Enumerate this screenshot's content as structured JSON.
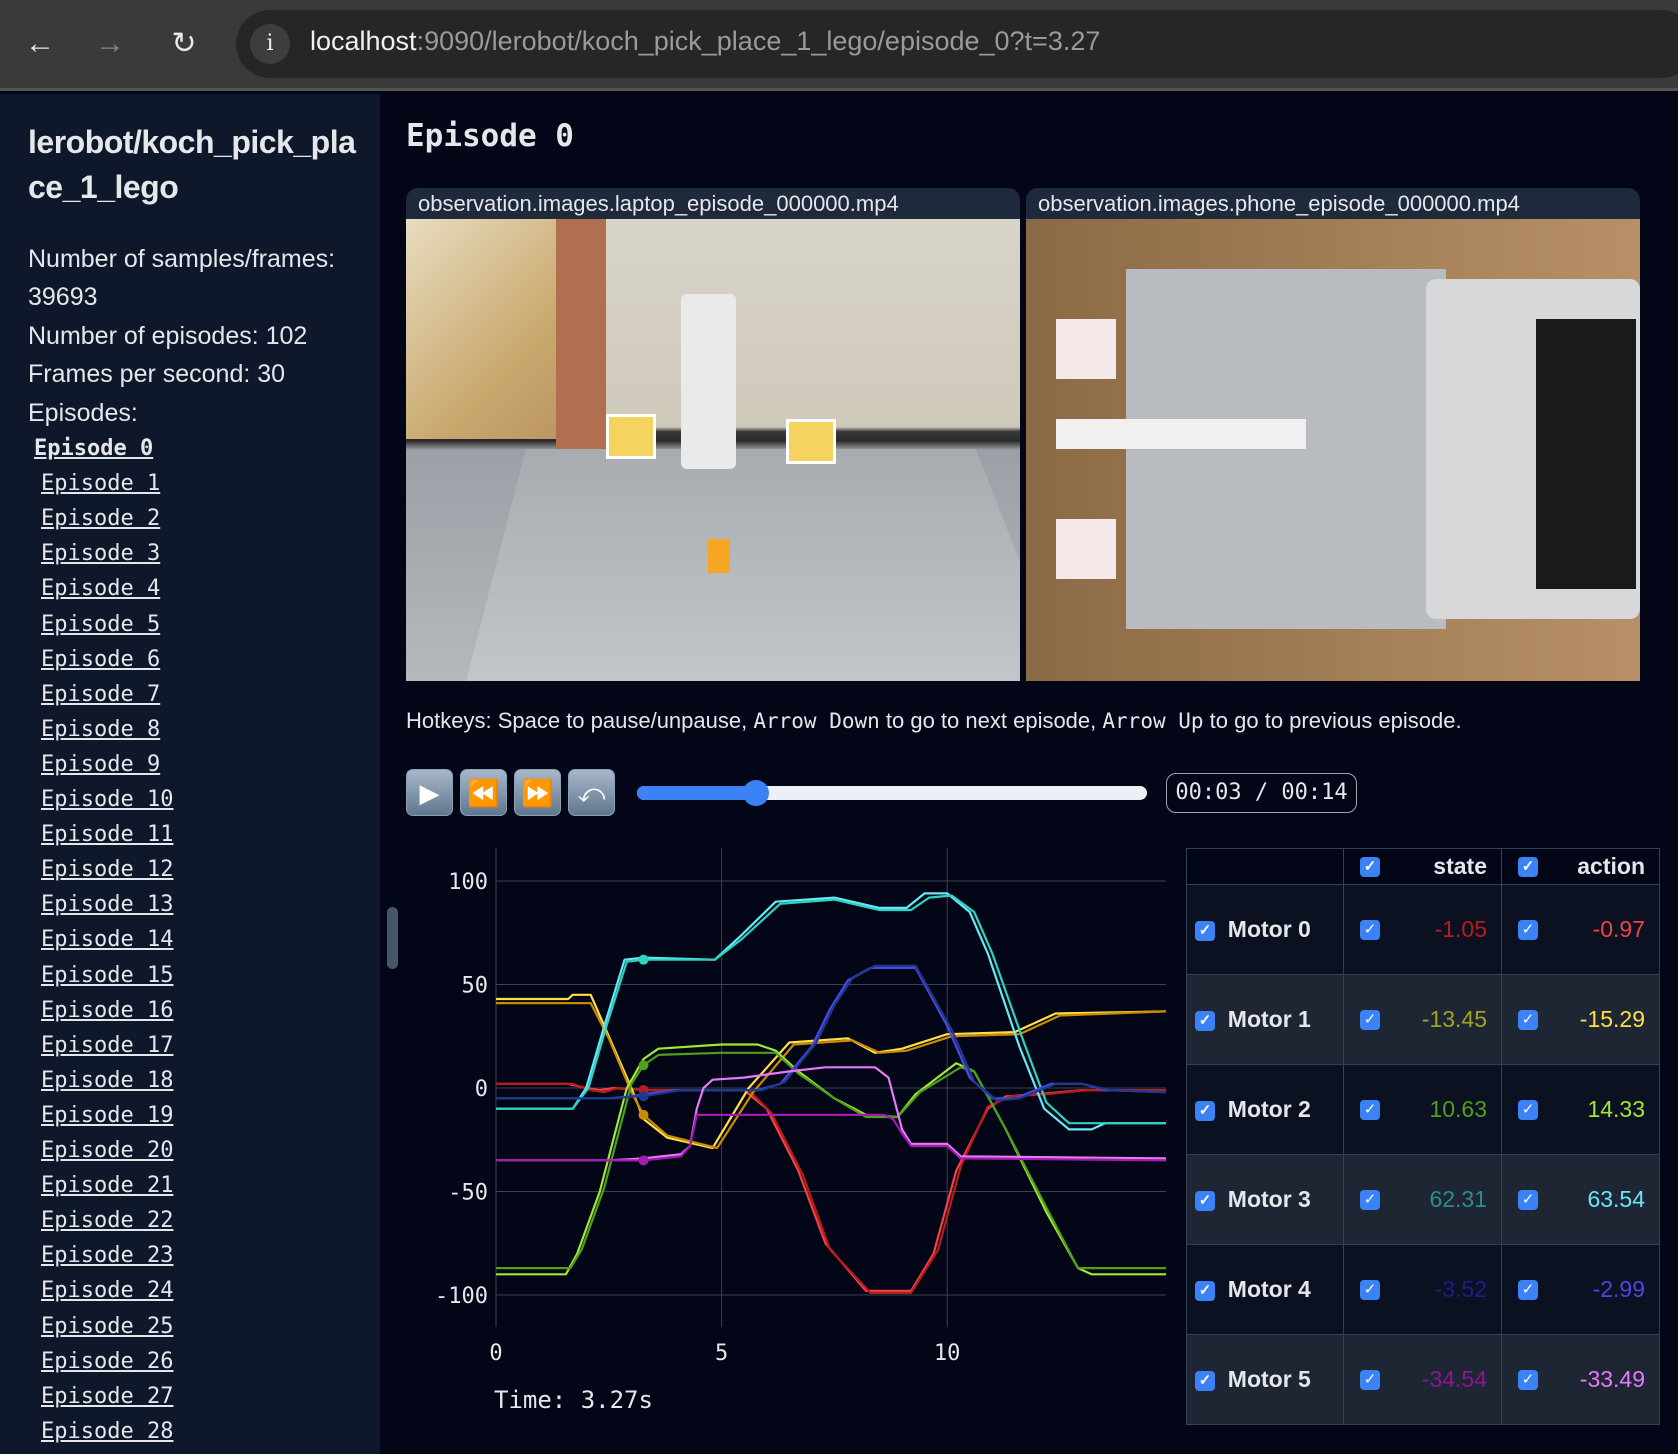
{
  "browser": {
    "url_host": "localhost",
    "url_rest": ":9090/lerobot/koch_pick_place_1_lego/episode_0?t=3.27",
    "icons": [
      "back-arrow-icon",
      "forward-arrow-icon",
      "reload-icon",
      "info-icon"
    ]
  },
  "sidebar": {
    "title": "lerobot/koch_pick_place_1_lego",
    "stats": [
      "Number of samples/frames: 39693",
      "Number of episodes: 102",
      "Frames per second: 30",
      "Episodes:"
    ],
    "episodes": [
      "Episode 0",
      "Episode 1",
      "Episode 2",
      "Episode 3",
      "Episode 4",
      "Episode 5",
      "Episode 6",
      "Episode 7",
      "Episode 8",
      "Episode 9",
      "Episode 10",
      "Episode 11",
      "Episode 12",
      "Episode 13",
      "Episode 14",
      "Episode 15",
      "Episode 16",
      "Episode 17",
      "Episode 18",
      "Episode 19",
      "Episode 20",
      "Episode 21",
      "Episode 22",
      "Episode 23",
      "Episode 24",
      "Episode 25",
      "Episode 26",
      "Episode 27",
      "Episode 28"
    ],
    "active_episode": 0
  },
  "main": {
    "title": "Episode 0",
    "videos": [
      "observation.images.laptop_episode_000000.mp4",
      "observation.images.phone_episode_000000.mp4"
    ],
    "hotkeys": {
      "p1": "Hotkeys: Space to pause/unpause, ",
      "k1": "Arrow Down",
      "p2": " to go to next episode, ",
      "k2": "Arrow Up",
      "p3": " to go to previous episode."
    },
    "player": {
      "buttons": [
        "play",
        "rewind",
        "fast-forward",
        "loop"
      ],
      "progress": 0.234,
      "time": "00:03 / 00:14"
    },
    "time_label": "Time: 3.27s"
  },
  "chart_data": {
    "type": "line",
    "xlim": [
      0,
      14.85
    ],
    "ylim": [
      -120,
      115
    ],
    "xticks": [
      "0",
      "5",
      "10"
    ],
    "yticks": [
      "100",
      "50",
      "0",
      "-50",
      "-100"
    ],
    "grid": true,
    "current_time": 3.27,
    "series": [
      {
        "motor": 0,
        "kind": "action",
        "color": "#ef4444",
        "points": [
          [
            0,
            2
          ],
          [
            1.6,
            2
          ],
          [
            2.0,
            0
          ],
          [
            2.3,
            -1
          ],
          [
            2.6,
            0
          ],
          [
            3.3,
            -1
          ],
          [
            5.5,
            -1
          ],
          [
            6.0,
            -10
          ],
          [
            6.7,
            -40
          ],
          [
            7.3,
            -75
          ],
          [
            8.2,
            -98
          ],
          [
            9.2,
            -98
          ],
          [
            9.7,
            -80
          ],
          [
            10.2,
            -40
          ],
          [
            10.9,
            -10
          ],
          [
            11.3,
            -4
          ],
          [
            12.0,
            -3
          ],
          [
            13.0,
            -1
          ],
          [
            14.85,
            -1
          ]
        ]
      },
      {
        "motor": 0,
        "kind": "state",
        "color": "#b91c1c",
        "points": [
          [
            0,
            2
          ],
          [
            1.7,
            2
          ],
          [
            2.1,
            -1
          ],
          [
            2.4,
            -2
          ],
          [
            2.7,
            0
          ],
          [
            3.3,
            -1
          ],
          [
            5.6,
            -1
          ],
          [
            6.1,
            -12
          ],
          [
            6.8,
            -42
          ],
          [
            7.4,
            -78
          ],
          [
            8.3,
            -99
          ],
          [
            9.2,
            -99
          ],
          [
            9.8,
            -78
          ],
          [
            10.3,
            -38
          ],
          [
            10.9,
            -9
          ],
          [
            11.4,
            -4
          ],
          [
            12.2,
            -3
          ],
          [
            13.1,
            -1
          ],
          [
            14.85,
            -1
          ]
        ]
      },
      {
        "motor": 1,
        "kind": "action",
        "color": "#fde047",
        "points": [
          [
            0,
            43
          ],
          [
            1.6,
            43
          ],
          [
            1.7,
            45
          ],
          [
            2.1,
            45
          ],
          [
            2.5,
            25
          ],
          [
            3.0,
            0
          ],
          [
            3.27,
            -15
          ],
          [
            3.8,
            -24
          ],
          [
            4.8,
            -29
          ],
          [
            5.6,
            0
          ],
          [
            6.5,
            22
          ],
          [
            7.8,
            24
          ],
          [
            8.4,
            17
          ],
          [
            9.0,
            19
          ],
          [
            10.0,
            26
          ],
          [
            11.5,
            27
          ],
          [
            12.4,
            36
          ],
          [
            14.85,
            37
          ]
        ]
      },
      {
        "motor": 1,
        "kind": "state",
        "color": "#ca8a04",
        "points": [
          [
            0,
            41
          ],
          [
            2.1,
            41
          ],
          [
            2.5,
            24
          ],
          [
            3.0,
            -2
          ],
          [
            3.27,
            -13
          ],
          [
            3.8,
            -23
          ],
          [
            4.9,
            -29
          ],
          [
            5.7,
            -2
          ],
          [
            6.6,
            21
          ],
          [
            7.9,
            23
          ],
          [
            8.5,
            17
          ],
          [
            9.1,
            18
          ],
          [
            10.1,
            25
          ],
          [
            11.6,
            26
          ],
          [
            12.5,
            35
          ],
          [
            14.85,
            37
          ]
        ]
      },
      {
        "motor": 2,
        "kind": "action",
        "color": "#a3e635",
        "points": [
          [
            0,
            -90
          ],
          [
            1.55,
            -90
          ],
          [
            1.8,
            -80
          ],
          [
            2.3,
            -50
          ],
          [
            2.9,
            0
          ],
          [
            3.27,
            14
          ],
          [
            3.6,
            19
          ],
          [
            5.0,
            21
          ],
          [
            5.8,
            21
          ],
          [
            6.2,
            18
          ],
          [
            6.7,
            8
          ],
          [
            7.5,
            -5
          ],
          [
            8.2,
            -13
          ],
          [
            8.9,
            -14
          ],
          [
            9.3,
            -3
          ],
          [
            10.2,
            12
          ],
          [
            10.6,
            8
          ],
          [
            11.3,
            -20
          ],
          [
            12.2,
            -60
          ],
          [
            12.9,
            -87
          ],
          [
            13.2,
            -90
          ],
          [
            14.85,
            -90
          ]
        ]
      },
      {
        "motor": 2,
        "kind": "state",
        "color": "#4d9f1c",
        "points": [
          [
            0,
            -87
          ],
          [
            1.65,
            -87
          ],
          [
            1.9,
            -78
          ],
          [
            2.4,
            -48
          ],
          [
            3.0,
            2
          ],
          [
            3.27,
            11
          ],
          [
            3.6,
            16
          ],
          [
            5.0,
            17
          ],
          [
            6.2,
            17
          ],
          [
            6.7,
            7
          ],
          [
            7.5,
            -5
          ],
          [
            8.2,
            -14
          ],
          [
            8.9,
            -14
          ],
          [
            9.4,
            -2
          ],
          [
            10.3,
            10
          ],
          [
            10.6,
            8
          ],
          [
            11.3,
            -20
          ],
          [
            12.3,
            -62
          ],
          [
            12.9,
            -87
          ],
          [
            14.85,
            -87
          ]
        ]
      },
      {
        "motor": 3,
        "kind": "action",
        "color": "#67e8f9",
        "points": [
          [
            0,
            -10
          ],
          [
            1.7,
            -10
          ],
          [
            2.0,
            0
          ],
          [
            2.4,
            30
          ],
          [
            2.85,
            62
          ],
          [
            3.27,
            63
          ],
          [
            4.85,
            62
          ],
          [
            5.4,
            73
          ],
          [
            6.2,
            90
          ],
          [
            7.5,
            92
          ],
          [
            8.5,
            87
          ],
          [
            9.1,
            87
          ],
          [
            9.5,
            94
          ],
          [
            10.0,
            94
          ],
          [
            10.5,
            85
          ],
          [
            10.9,
            65
          ],
          [
            11.6,
            20
          ],
          [
            12.15,
            -10
          ],
          [
            12.7,
            -20
          ],
          [
            13.2,
            -20
          ],
          [
            13.5,
            -17
          ],
          [
            14.85,
            -17
          ]
        ]
      },
      {
        "motor": 3,
        "kind": "state",
        "color": "#2dd4bf",
        "points": [
          [
            0,
            -10
          ],
          [
            1.7,
            -10
          ],
          [
            2.05,
            0
          ],
          [
            2.45,
            30
          ],
          [
            2.9,
            61
          ],
          [
            3.27,
            62
          ],
          [
            4.85,
            62
          ],
          [
            5.45,
            72
          ],
          [
            6.3,
            89
          ],
          [
            7.5,
            91
          ],
          [
            8.5,
            86
          ],
          [
            9.2,
            86
          ],
          [
            9.6,
            92
          ],
          [
            10.1,
            93
          ],
          [
            10.6,
            85
          ],
          [
            11.0,
            65
          ],
          [
            11.7,
            22
          ],
          [
            12.2,
            -7
          ],
          [
            12.7,
            -17
          ],
          [
            14.85,
            -17
          ]
        ]
      },
      {
        "motor": 4,
        "kind": "action",
        "color": "#4f46e5",
        "points": [
          [
            0,
            -5
          ],
          [
            2.5,
            -5
          ],
          [
            3.0,
            -4
          ],
          [
            3.27,
            -3
          ],
          [
            4.0,
            -1
          ],
          [
            5.8,
            -1
          ],
          [
            6.3,
            2
          ],
          [
            7.0,
            20
          ],
          [
            7.4,
            38
          ],
          [
            7.8,
            52
          ],
          [
            8.3,
            58
          ],
          [
            9.3,
            58
          ],
          [
            10.0,
            30
          ],
          [
            10.5,
            5
          ],
          [
            11.0,
            -5
          ],
          [
            11.5,
            -5
          ],
          [
            12.3,
            2
          ],
          [
            13.0,
            2
          ],
          [
            13.5,
            -1
          ],
          [
            14.85,
            -2
          ]
        ]
      },
      {
        "motor": 4,
        "kind": "state",
        "color": "#1e3a8a",
        "points": [
          [
            0,
            -5
          ],
          [
            2.6,
            -5
          ],
          [
            3.1,
            -4
          ],
          [
            3.27,
            -4
          ],
          [
            4.1,
            -1
          ],
          [
            5.9,
            -1
          ],
          [
            6.4,
            3
          ],
          [
            7.1,
            22
          ],
          [
            7.5,
            40
          ],
          [
            7.9,
            53
          ],
          [
            8.4,
            59
          ],
          [
            9.3,
            59
          ],
          [
            10.1,
            28
          ],
          [
            10.6,
            3
          ],
          [
            11.1,
            -6
          ],
          [
            11.6,
            -5
          ],
          [
            12.4,
            2
          ],
          [
            13.0,
            2
          ],
          [
            13.6,
            -1
          ],
          [
            14.85,
            -2
          ]
        ]
      },
      {
        "motor": 5,
        "kind": "action",
        "color": "#e879f9",
        "points": [
          [
            0,
            -35
          ],
          [
            2.5,
            -35
          ],
          [
            3.27,
            -34
          ],
          [
            4.1,
            -32
          ],
          [
            4.3,
            -28
          ],
          [
            4.45,
            -10
          ],
          [
            4.6,
            0
          ],
          [
            4.8,
            4
          ],
          [
            5.5,
            5
          ],
          [
            6.5,
            8
          ],
          [
            7.3,
            10
          ],
          [
            8.4,
            10
          ],
          [
            8.7,
            5
          ],
          [
            9.0,
            -20
          ],
          [
            9.2,
            -27
          ],
          [
            10.0,
            -27
          ],
          [
            10.3,
            -33
          ],
          [
            14.85,
            -34
          ]
        ]
      },
      {
        "motor": 5,
        "kind": "state",
        "color": "#a21caf",
        "points": [
          [
            0,
            -35
          ],
          [
            2.6,
            -35
          ],
          [
            3.27,
            -35
          ],
          [
            4.1,
            -33
          ],
          [
            4.3,
            -28
          ],
          [
            4.45,
            -13
          ],
          [
            4.6,
            -13
          ],
          [
            8.6,
            -13
          ],
          [
            8.8,
            -15
          ],
          [
            9.0,
            -22
          ],
          [
            9.2,
            -28
          ],
          [
            10.0,
            -28
          ],
          [
            10.3,
            -34
          ],
          [
            14.85,
            -35
          ]
        ]
      }
    ]
  },
  "table": {
    "headers": {
      "state": "state",
      "action": "action"
    },
    "rows": [
      {
        "label": "Motor 0",
        "state": "-1.05",
        "action": "-0.97",
        "state_color": "#b91c1c",
        "action_color": "#ef4444"
      },
      {
        "label": "Motor 1",
        "state": "-13.45",
        "action": "-15.29",
        "state_color": "#a3a322",
        "action_color": "#fde047"
      },
      {
        "label": "Motor 2",
        "state": "10.63",
        "action": "14.33",
        "state_color": "#4d9f1c",
        "action_color": "#a3e635"
      },
      {
        "label": "Motor 3",
        "state": "62.31",
        "action": "63.54",
        "state_color": "#2a8f88",
        "action_color": "#67e8f9"
      },
      {
        "label": "Motor 4",
        "state": "-3.52",
        "action": "-2.99",
        "state_color": "#1e1b8a",
        "action_color": "#4f46e5"
      },
      {
        "label": "Motor 5",
        "state": "-34.54",
        "action": "-33.49",
        "state_color": "#86198f",
        "action_color": "#e879f9"
      }
    ]
  }
}
